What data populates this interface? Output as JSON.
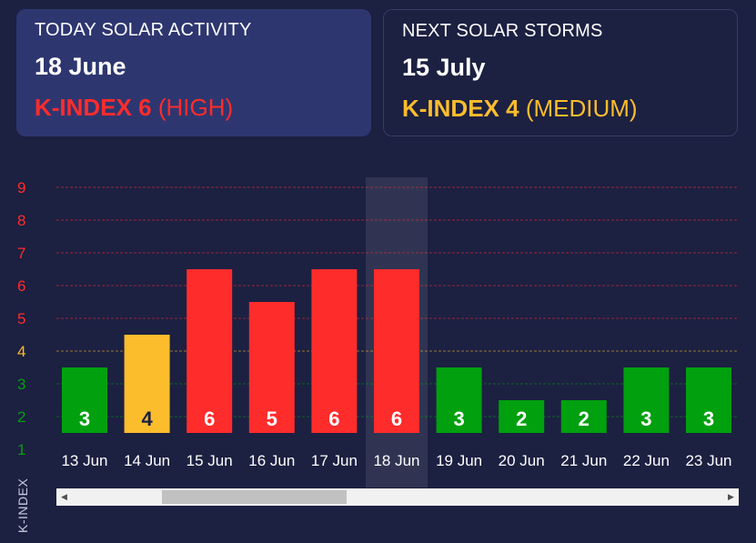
{
  "today": {
    "heading": "TODAY SOLAR ACTIVITY",
    "date": "18 June",
    "kindex_label": "K-INDEX 6",
    "level": "(HIGH)"
  },
  "next": {
    "heading": "NEXT SOLAR STORMS",
    "date": "15 July",
    "kindex_label": "K-INDEX 4",
    "level": "(MEDIUM)"
  },
  "colors": {
    "low": "#00a00f",
    "medium": "#fbbd2c",
    "high": "#ff2c2c",
    "background": "#1c2041",
    "highlight": "#2e3670"
  },
  "chart_data": {
    "type": "bar",
    "ylabel": "K-INDEX",
    "categories": [
      "13 Jun",
      "14 Jun",
      "15 Jun",
      "16 Jun",
      "17 Jun",
      "18 Jun",
      "19 Jun",
      "20 Jun",
      "21 Jun",
      "22 Jun",
      "23 Jun"
    ],
    "values": [
      3,
      4,
      6,
      5,
      6,
      6,
      3,
      2,
      2,
      3,
      3
    ],
    "yticks": [
      1,
      2,
      3,
      4,
      5,
      6,
      7,
      8,
      9
    ],
    "ylim": [
      1,
      9
    ],
    "highlighted_category": "18 Jun",
    "grid": true,
    "legend": "none",
    "thresholds": {
      "medium_from": 4,
      "high_from": 5
    }
  },
  "scroll": {
    "left_icon": "chevron-left-icon",
    "right_icon": "chevron-right-icon"
  }
}
